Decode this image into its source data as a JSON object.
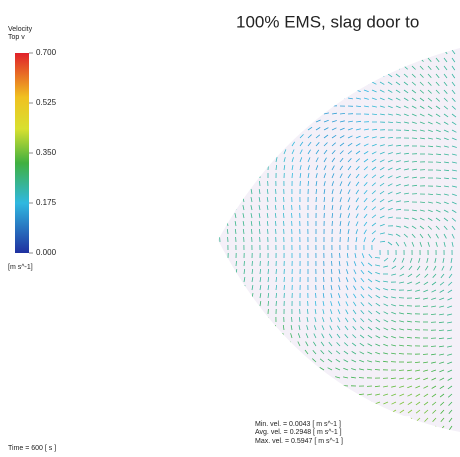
{
  "legend": {
    "title": "Velocity",
    "subtitle": "Top v",
    "ticks": [
      "0.700",
      "0.525",
      "0.350",
      "0.175",
      "0.000"
    ],
    "unit": "[m s^-1]"
  },
  "title": "100% EMS, slag door to",
  "stats": [
    "Min. vel. = 0.0043 [ m s^-1 ]",
    "Avg. vel. = 0.2948 [ m s^-1 ]",
    "Max. vel. = 0.5947 [ m s^-1 ]"
  ],
  "time": "Time = 600 [ s ]"
}
